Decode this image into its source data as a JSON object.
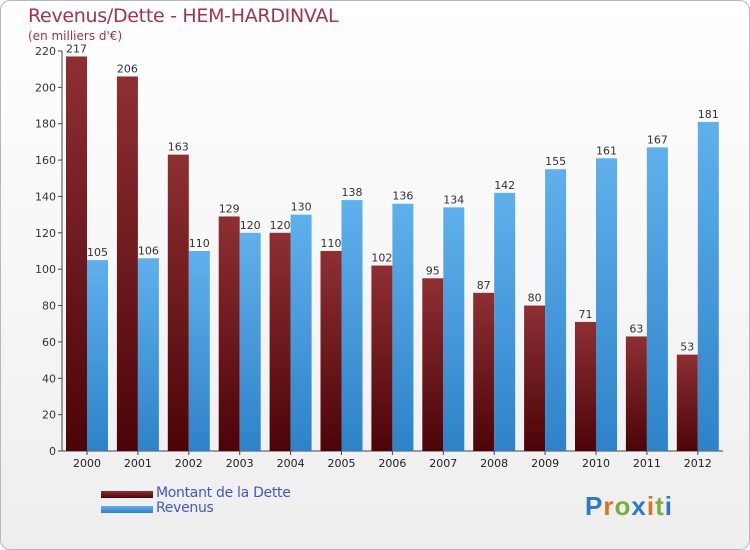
{
  "title": "Revenus/Dette - HEM-HARDINVAL",
  "subtitle": "(en milliers d'€)",
  "legend": {
    "debt_label": "Montant de la Dette",
    "revenue_label": "Revenus"
  },
  "logo_text": "Proxiti",
  "colors": {
    "title": "#a0334d",
    "debt_top": "#8e2f33",
    "debt_bottom": "#4c0408",
    "revenue_top": "#5fb0ec",
    "revenue_bottom": "#2e82c8",
    "legend_text": "#3e58c8"
  },
  "chart_data": {
    "type": "bar",
    "title": "Revenus/Dette - HEM-HARDINVAL",
    "ylabel": "(en milliers d'€)",
    "xlabel": "",
    "categories": [
      "2000",
      "2001",
      "2002",
      "2003",
      "2004",
      "2005",
      "2006",
      "2007",
      "2008",
      "2009",
      "2010",
      "2011",
      "2012"
    ],
    "series": [
      {
        "name": "Montant de la Dette",
        "values": [
          217,
          206,
          163,
          129,
          120,
          110,
          102,
          95,
          87,
          80,
          71,
          63,
          53
        ]
      },
      {
        "name": "Revenus",
        "values": [
          105,
          106,
          110,
          120,
          130,
          138,
          136,
          134,
          142,
          155,
          161,
          167,
          181
        ]
      }
    ],
    "ylim": [
      0,
      220
    ],
    "yticks": [
      0,
      20,
      40,
      60,
      80,
      100,
      120,
      140,
      160,
      180,
      200,
      220
    ],
    "grid": false,
    "legend_position": "bottom-left"
  }
}
